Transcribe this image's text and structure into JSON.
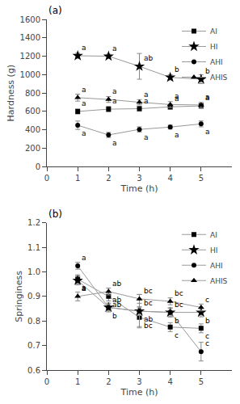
{
  "chart_data": [
    {
      "type": "line",
      "title": "(a)",
      "x_label": "Time (h)",
      "y_label": "Hardness (g)",
      "x": [
        1,
        2,
        3,
        4,
        5
      ],
      "xlim": [
        0,
        6
      ],
      "xticks": [
        0,
        1,
        2,
        3,
        4,
        5
      ],
      "ylim": [
        0,
        1600
      ],
      "yticks": [
        0,
        200,
        400,
        600,
        800,
        1000,
        1200,
        1400,
        1600
      ],
      "grid": false,
      "legend": "upper right",
      "series": [
        {
          "name": "AI",
          "color": "black",
          "marker": "square",
          "values": [
            600,
            625,
            630,
            650,
            660
          ],
          "errors": [
            28,
            30,
            28,
            28,
            28
          ],
          "annotations": [
            "a",
            "a",
            "a",
            "a",
            "a"
          ]
        },
        {
          "name": "HI",
          "color": "black",
          "marker": "star",
          "values": [
            1205,
            1200,
            1090,
            970,
            950
          ],
          "errors": [
            28,
            22,
            140,
            28,
            48
          ],
          "annotations": [
            "a",
            "a",
            "ab",
            "b",
            "b"
          ]
        },
        {
          "name": "AHI",
          "color": "black",
          "marker": "circle",
          "values": [
            450,
            345,
            405,
            430,
            465
          ],
          "errors": [
            45,
            28,
            28,
            22,
            32
          ],
          "annotations": [
            "a",
            "a",
            "a",
            "a",
            "a"
          ]
        },
        {
          "name": "AHIS",
          "color": "black",
          "marker": "triangle-up",
          "values": [
            750,
            730,
            700,
            675,
            670
          ],
          "errors": [
            38,
            32,
            28,
            32,
            28
          ],
          "annotations": [
            "a",
            "a",
            "a",
            "a",
            "a"
          ]
        }
      ]
    },
    {
      "type": "line",
      "title": "(b)",
      "x_label": "Time (h)",
      "y_label": "Springiness",
      "x": [
        1,
        2,
        3,
        4,
        5
      ],
      "xlim": [
        0,
        6
      ],
      "xticks": [
        0,
        1,
        2,
        3,
        4,
        5
      ],
      "ylim": [
        0.6,
        1.2
      ],
      "yticks": [
        0.6,
        0.7,
        0.8,
        0.9,
        {
          "value": 1,
          "label": "1.0"
        },
        1.1,
        1.2
      ],
      "grid": false,
      "legend": "upper right",
      "series": [
        {
          "name": "AI",
          "color": "black",
          "marker": "square",
          "values": [
            0.97,
            0.9,
            0.815,
            0.775,
            0.77
          ],
          "errors": [
            0.018,
            0.018,
            0.038,
            0.018,
            0.018
          ],
          "annotations": [
            "a",
            "ab",
            "bc",
            "c",
            "c"
          ]
        },
        {
          "name": "HI",
          "color": "black",
          "marker": "star",
          "values": [
            0.965,
            0.855,
            0.84,
            0.835,
            0.835
          ],
          "errors": [
            0.018,
            0.018,
            0.018,
            0.018,
            0.018
          ],
          "annotations": [
            "a",
            "b",
            "ab",
            "b",
            "b"
          ]
        },
        {
          "name": "AHI",
          "color": "black",
          "marker": "circle",
          "values": [
            1.025,
            0.855,
            0.84,
            0.835,
            0.675
          ],
          "errors": [
            0.014,
            0.014,
            0.068,
            0.018,
            0.038
          ],
          "annotations": [
            "a",
            "ab",
            "bc",
            "bc",
            "c"
          ]
        },
        {
          "name": "AHIS",
          "color": "black",
          "marker": "triangle-up",
          "values": [
            0.9,
            0.92,
            0.89,
            0.88,
            0.855
          ],
          "errors": [
            0.018,
            0.014,
            0.018,
            0.014,
            0.014
          ],
          "annotations": [
            "a",
            "ab",
            "bc",
            "bc",
            "c"
          ]
        }
      ]
    }
  ]
}
